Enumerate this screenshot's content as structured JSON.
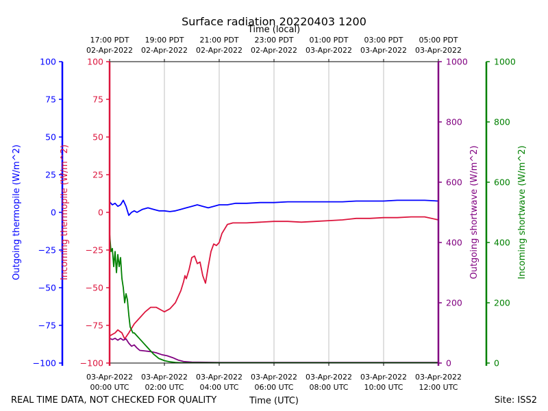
{
  "chart_data": {
    "type": "line",
    "title": "Surface radiation 20220403 1200",
    "top_axis_label": "Time (local)",
    "xlabel": "Time (UTC)",
    "footer_left": "REAL TIME DATA, NOT CHECKED FOR QUALITY",
    "footer_right": "Site: ISS2",
    "x_range_hours": [
      0,
      12
    ],
    "x_ticks": [
      {
        "h": 0,
        "utc": [
          "03-Apr-2022",
          "00:00 UTC"
        ],
        "local": [
          "17:00 PDT",
          "02-Apr-2022"
        ]
      },
      {
        "h": 2,
        "utc": [
          "03-Apr-2022",
          "02:00 UTC"
        ],
        "local": [
          "19:00 PDT",
          "02-Apr-2022"
        ]
      },
      {
        "h": 4,
        "utc": [
          "03-Apr-2022",
          "04:00 UTC"
        ],
        "local": [
          "21:00 PDT",
          "02-Apr-2022"
        ]
      },
      {
        "h": 6,
        "utc": [
          "03-Apr-2022",
          "06:00 UTC"
        ],
        "local": [
          "23:00 PDT",
          "02-Apr-2022"
        ]
      },
      {
        "h": 8,
        "utc": [
          "03-Apr-2022",
          "08:00 UTC"
        ],
        "local": [
          "01:00 PDT",
          "03-Apr-2022"
        ]
      },
      {
        "h": 10,
        "utc": [
          "03-Apr-2022",
          "10:00 UTC"
        ],
        "local": [
          "03:00 PDT",
          "03-Apr-2022"
        ]
      },
      {
        "h": 12,
        "utc": [
          "03-Apr-2022",
          "12:00 UTC"
        ],
        "local": [
          "05:00 PDT",
          "03-Apr-2022"
        ]
      }
    ],
    "axes": [
      {
        "id": "outgoing_thermopile",
        "label": "Outgoing thermopile (W/m^2)",
        "color": "#0000ff",
        "side": "left",
        "ylim": [
          -100,
          100
        ],
        "ticks": [
          -100,
          -75,
          -50,
          -25,
          0,
          25,
          50,
          75,
          100
        ]
      },
      {
        "id": "incoming_thermopile",
        "label": "Incoming thermopile (W/m^2)",
        "color": "#dc143c",
        "side": "left",
        "ylim": [
          -100,
          100
        ],
        "ticks": [
          -100,
          -75,
          -50,
          -25,
          0,
          25,
          50,
          75,
          100
        ]
      },
      {
        "id": "outgoing_shortwave",
        "label": "Outgoing shortwave (W/m^2)",
        "color": "#800080",
        "side": "right",
        "ylim": [
          0,
          1000
        ],
        "ticks": [
          0,
          200,
          400,
          600,
          800,
          1000
        ]
      },
      {
        "id": "incoming_shortwave",
        "label": "Incoming shortwave (W/m^2)",
        "color": "#008000",
        "side": "right",
        "ylim": [
          0,
          1000
        ],
        "ticks": [
          0,
          200,
          400,
          600,
          800,
          1000
        ]
      }
    ],
    "grid": "vertical",
    "series": [
      {
        "name": "Outgoing thermopile",
        "axis": "outgoing_thermopile",
        "color": "#0000ff",
        "x": [
          0,
          0.1,
          0.2,
          0.3,
          0.4,
          0.5,
          0.6,
          0.7,
          0.8,
          0.9,
          1.0,
          1.2,
          1.4,
          1.6,
          1.8,
          2.0,
          2.2,
          2.4,
          2.6,
          2.8,
          3.0,
          3.2,
          3.4,
          3.6,
          3.8,
          4.0,
          4.3,
          4.6,
          5.0,
          5.5,
          6.0,
          6.5,
          7.0,
          7.5,
          8.0,
          8.5,
          9.0,
          9.5,
          10.0,
          10.5,
          11.0,
          11.5,
          12.0
        ],
        "y": [
          7,
          5,
          6,
          4,
          5,
          8,
          4,
          -2,
          0,
          1,
          0,
          2,
          3,
          2,
          1,
          1,
          0.5,
          1,
          2,
          3,
          4,
          5,
          4,
          3,
          4,
          5,
          5,
          6,
          6,
          6.5,
          6.5,
          7,
          7,
          7,
          7,
          7,
          7.5,
          7.5,
          7.5,
          8,
          8,
          8,
          7.5
        ]
      },
      {
        "name": "Incoming thermopile",
        "axis": "incoming_thermopile",
        "color": "#dc143c",
        "x": [
          0,
          0.2,
          0.3,
          0.45,
          0.55,
          0.7,
          0.9,
          1.0,
          1.1,
          1.3,
          1.5,
          1.7,
          1.8,
          1.9,
          2.0,
          2.2,
          2.4,
          2.5,
          2.6,
          2.7,
          2.75,
          2.8,
          2.9,
          3.0,
          3.1,
          3.2,
          3.3,
          3.4,
          3.5,
          3.6,
          3.7,
          3.8,
          3.9,
          4.0,
          4.1,
          4.3,
          4.5,
          5.0,
          5.5,
          6.0,
          6.5,
          7.0,
          7.5,
          8.0,
          8.5,
          9.0,
          9.5,
          10.0,
          10.5,
          11.0,
          11.5,
          12.0
        ],
        "y": [
          -82,
          -80,
          -78,
          -80,
          -84,
          -80,
          -74,
          -72,
          -70,
          -66,
          -63,
          -63,
          -64,
          -65,
          -66,
          -64,
          -60,
          -56,
          -52,
          -46,
          -42,
          -44,
          -38,
          -30,
          -29,
          -34,
          -33,
          -42,
          -47,
          -36,
          -26,
          -21,
          -22,
          -20,
          -14,
          -8,
          -7,
          -7,
          -6.5,
          -6,
          -6,
          -6.5,
          -6,
          -5.5,
          -5,
          -4,
          -4,
          -3.5,
          -3.5,
          -3,
          -3,
          -5
        ]
      },
      {
        "name": "Outgoing shortwave",
        "axis": "outgoing_shortwave",
        "color": "#800080",
        "x": [
          0,
          0.1,
          0.2,
          0.3,
          0.4,
          0.5,
          0.6,
          0.7,
          0.8,
          0.9,
          1.0,
          1.1,
          1.3,
          1.5,
          1.7,
          1.9,
          2.1,
          2.3,
          2.5,
          2.7,
          3.0,
          4.0,
          6.0,
          8.0,
          10.0,
          12.0
        ],
        "y": [
          82,
          78,
          82,
          76,
          82,
          76,
          80,
          66,
          56,
          60,
          50,
          42,
          40,
          38,
          34,
          28,
          24,
          18,
          10,
          5,
          3,
          2,
          2,
          2,
          2,
          2
        ]
      },
      {
        "name": "Incoming shortwave",
        "axis": "incoming_shortwave",
        "color": "#008000",
        "x": [
          0,
          0.05,
          0.1,
          0.15,
          0.2,
          0.25,
          0.3,
          0.35,
          0.4,
          0.45,
          0.5,
          0.55,
          0.6,
          0.65,
          0.7,
          0.75,
          0.8,
          0.85,
          0.9,
          1.0,
          1.1,
          1.2,
          1.4,
          1.6,
          1.8,
          2.0,
          2.2,
          2.4,
          2.6,
          2.8,
          3.0,
          3.5,
          4.0,
          6.0,
          8.0,
          10.0,
          12.0
        ],
        "y": [
          430,
          370,
          380,
          320,
          370,
          300,
          360,
          320,
          350,
          280,
          250,
          200,
          230,
          210,
          160,
          120,
          110,
          100,
          100,
          90,
          80,
          70,
          50,
          30,
          15,
          8,
          4,
          2,
          1,
          1,
          1,
          1,
          1,
          1,
          1,
          1,
          1
        ]
      }
    ]
  }
}
